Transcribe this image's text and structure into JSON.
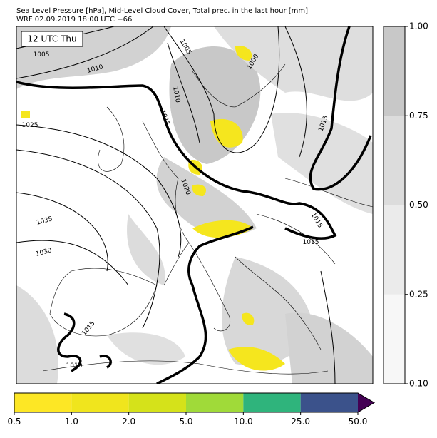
{
  "header": {
    "title": [
      "Sea Level Pressure [hPa], Mid-Level Cloud Cover, Total prec. in the last hour [mm]",
      "WRF 02.09.2019 18:00 UTC +66"
    ]
  },
  "map": {
    "time_label": "12 UTC Thu",
    "isobar_labels": [
      "1005",
      "1010",
      "1005",
      "1000",
      "1010",
      "1015",
      "1025",
      "1020",
      "1035",
      "1030",
      "1015",
      "1015",
      "1015",
      "1015",
      "1010"
    ]
  },
  "cloud_colorbar": {
    "ticks": [
      "0.10",
      "0.25",
      "0.50",
      "0.75",
      "1.00"
    ],
    "colors": [
      "#f7f7f7",
      "#ebebeb",
      "#dcdcdc",
      "#c8c8c8"
    ]
  },
  "precip_colorbar": {
    "ticks": [
      "0.5",
      "1.0",
      "2.0",
      "5.0",
      "10.0",
      "25.0",
      "50.0"
    ],
    "colors": [
      "#fde725",
      "#f0e51d",
      "#d5e21a",
      "#a0da39",
      "#2fb47c",
      "#3b528b"
    ],
    "extend_color": "#440154"
  }
}
